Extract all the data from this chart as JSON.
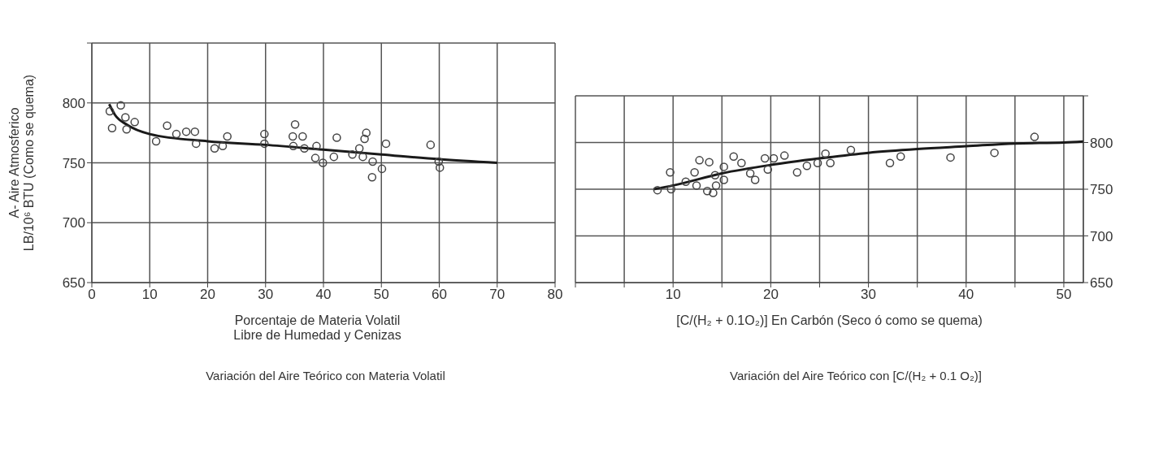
{
  "chart_data": [
    {
      "type": "scatter",
      "title": "Variación del Aire Teórico con Materia Volatil",
      "xlabel": "Porcentaje de Materia Volatil\nLibre de Humedad y Cenizas",
      "ylabel": "A- Aire Atmosferico\nLB/10⁶ BTU (Como se quema)",
      "xlim": [
        0,
        80
      ],
      "xticks": [
        0,
        10,
        20,
        30,
        40,
        50,
        60,
        70,
        80
      ],
      "ylim": [
        650,
        850
      ],
      "yticks": [
        650,
        700,
        750,
        800,
        {
          "value": 850,
          "label": null
        }
      ],
      "grid": true,
      "series": [
        {
          "marker": "circle",
          "color": "#444444",
          "x": [
            3.5,
            3.1,
            5.0,
            5.8,
            6.0,
            7.4,
            11.1,
            13.0,
            14.6,
            16.3,
            17.8,
            18.0,
            21.2,
            22.6,
            23.4,
            29.8,
            29.8,
            35.1,
            34.7,
            36.4,
            34.8,
            36.7,
            38.6,
            38.8,
            39.9,
            42.3,
            41.8,
            45.0,
            46.2,
            46.8,
            47.1,
            47.4,
            48.5,
            48.4,
            50.1,
            50.8,
            58.5,
            60.1,
            59.9
          ],
          "values": [
            779,
            793,
            798,
            788,
            778,
            784,
            768,
            781,
            774,
            776,
            776,
            766,
            762,
            764,
            772,
            774,
            766,
            782,
            772,
            772,
            764,
            762,
            754,
            764,
            750,
            771,
            755,
            757,
            762,
            755,
            770,
            775,
            751,
            738,
            745,
            766,
            765,
            746,
            751
          ]
        },
        {
          "type": "line",
          "color": "#1a1a1a",
          "x": [
            3,
            4,
            6,
            10,
            20,
            30,
            40,
            50,
            60,
            70
          ],
          "values": [
            799,
            790,
            782,
            774,
            768,
            765,
            761,
            757,
            753,
            750
          ]
        }
      ]
    },
    {
      "type": "scatter",
      "title": "Variación del Aire Teórico con [C/(H₂ + 0.1 O₂)]",
      "xlabel": "[C/(H₂ + 0.1O₂)] En Carbón (Seco ó como se quema)",
      "xlim": [
        0,
        52
      ],
      "xticks": [
        {
          "value": 0,
          "label": null
        },
        {
          "value": 5,
          "label": null
        },
        10,
        {
          "value": 15,
          "label": null
        },
        20,
        {
          "value": 25,
          "label": null
        },
        30,
        {
          "value": 35,
          "label": null
        },
        40,
        {
          "value": 45,
          "label": null
        },
        50
      ],
      "y2lim": [
        650,
        850
      ],
      "y2ticks": [
        650,
        700,
        750,
        800,
        {
          "value": 850,
          "label": null
        }
      ],
      "grid": true,
      "series": [
        {
          "axis": "y2",
          "marker": "circle",
          "color": "#444444",
          "x": [
            8.4,
            9.8,
            9.7,
            11.3,
            12.2,
            12.7,
            13.7,
            12.4,
            13.5,
            14.1,
            14.4,
            14.3,
            15.2,
            15.2,
            16.2,
            17.0,
            17.9,
            18.4,
            19.4,
            19.7,
            20.3,
            21.4,
            22.7,
            23.7,
            24.8,
            25.6,
            26.1,
            28.2,
            32.2,
            33.3,
            38.4,
            42.9,
            47.0
          ],
          "values": [
            749,
            750,
            768,
            758,
            768,
            781,
            779,
            754,
            748,
            746,
            754,
            765,
            774,
            760,
            785,
            778,
            767,
            760,
            783,
            771,
            783,
            786,
            768,
            775,
            778,
            788,
            778,
            792,
            778,
            785,
            784,
            789,
            806
          ]
        },
        {
          "type": "line",
          "axis": "y2",
          "color": "#1a1a1a",
          "x": [
            8,
            10,
            15,
            20,
            25,
            30,
            35,
            40,
            45,
            50,
            52
          ],
          "values": [
            750,
            754,
            767,
            776,
            783,
            789,
            793,
            796,
            799,
            800,
            801
          ]
        }
      ]
    }
  ]
}
